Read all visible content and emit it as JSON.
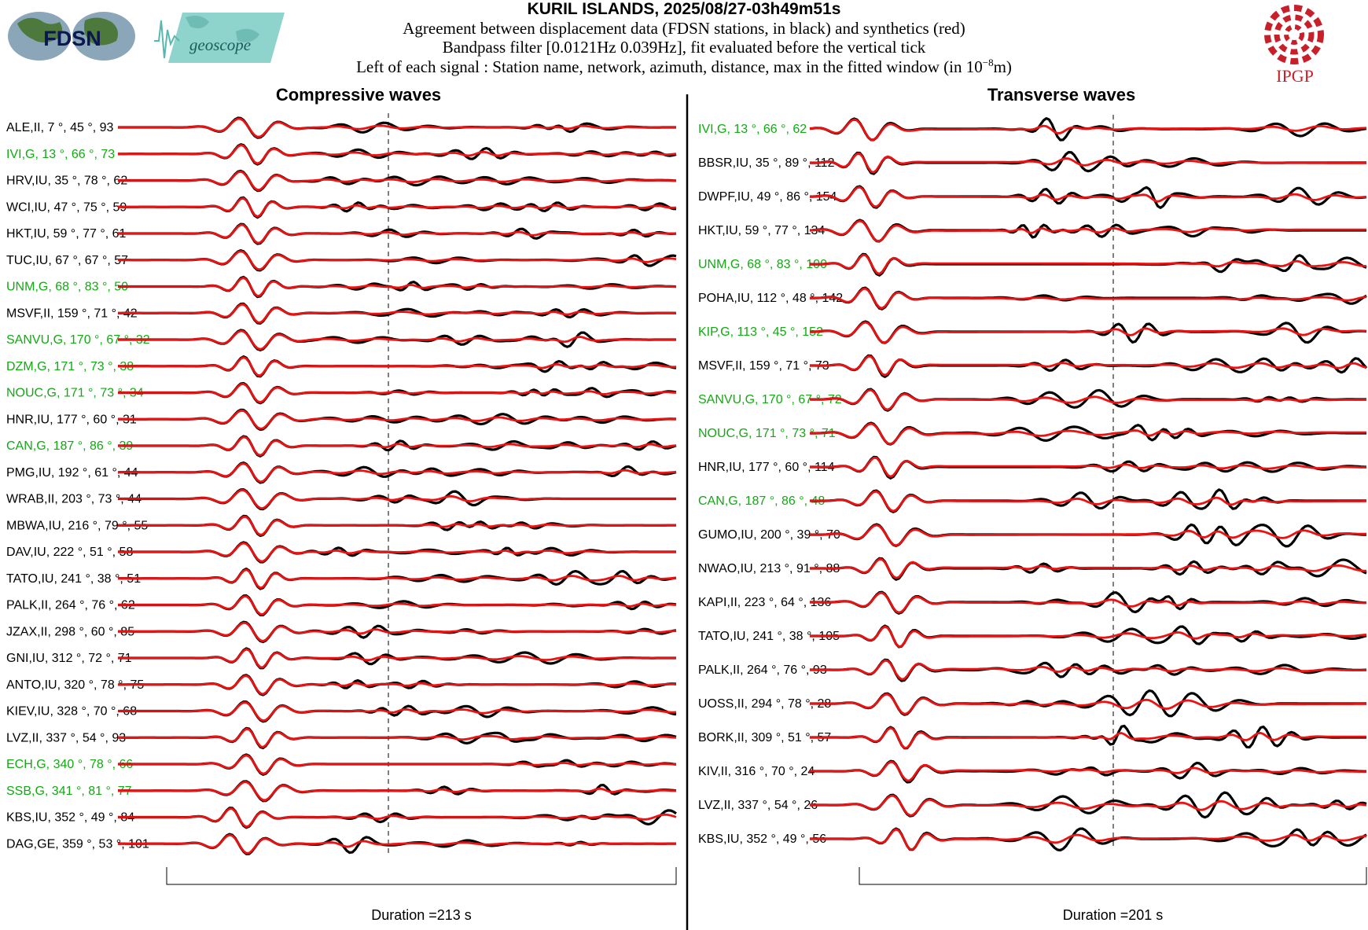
{
  "header": {
    "title": "KURIL ISLANDS, 2025/08/27-03h49m51s",
    "line1": "Agreement between displacement data (FDSN stations, in black) and synthetics (red)",
    "line2": "Bandpass filter [0.0121Hz 0.039Hz], fit evaluated before the vertical tick",
    "line3_prefix": "Left of each signal : Station name, network, azimuth, distance, max in the fitted window (in 10",
    "line3_exp": "−8",
    "line3_suffix": "m)"
  },
  "logos": {
    "fdsn": "FDSN",
    "geoscope": "geoscope",
    "ipgp": "IPGP"
  },
  "colors": {
    "data": "#000000",
    "synthetic": "#ee1111",
    "geoscope_station": "#11aa11",
    "other_station": "#000000"
  },
  "chart_data": [
    {
      "type": "line",
      "title": "Compressive waves",
      "xlabel": "Duration =213 s",
      "duration_s": 213,
      "series": [
        "data",
        "synthetics"
      ],
      "stations": [
        {
          "label": "ALE,II, 7 °, 45 °, 93",
          "geoscope": false
        },
        {
          "label": "IVI,G, 13 °, 66 °, 73",
          "geoscope": true
        },
        {
          "label": "HRV,IU, 35 °, 78 °, 62",
          "geoscope": false
        },
        {
          "label": "WCI,IU, 47 °, 75 °, 59",
          "geoscope": false
        },
        {
          "label": "HKT,IU, 59 °, 77 °, 61",
          "geoscope": false
        },
        {
          "label": "TUC,IU, 67 °, 67 °, 57",
          "geoscope": false
        },
        {
          "label": "UNM,G, 68 °, 83 °, 50",
          "geoscope": true
        },
        {
          "label": "MSVF,II, 159 °, 71 °, 42",
          "geoscope": false
        },
        {
          "label": "SANVU,G, 170 °, 67 °, 32",
          "geoscope": true
        },
        {
          "label": "DZM,G, 171 °, 73 °, 38",
          "geoscope": true
        },
        {
          "label": "NOUC,G, 171 °, 73 °, 34",
          "geoscope": true
        },
        {
          "label": "HNR,IU, 177 °, 60 °, 31",
          "geoscope": false
        },
        {
          "label": "CAN,G, 187 °, 86 °, 39",
          "geoscope": true
        },
        {
          "label": "PMG,IU, 192 °, 61 °, 44",
          "geoscope": false
        },
        {
          "label": "WRAB,II, 203 °, 73 °, 44",
          "geoscope": false
        },
        {
          "label": "MBWA,IU, 216 °, 79 °, 55",
          "geoscope": false
        },
        {
          "label": "DAV,IU, 222 °, 51 °, 58",
          "geoscope": false
        },
        {
          "label": "TATO,IU, 241 °, 38 °, 51",
          "geoscope": false
        },
        {
          "label": "PALK,II, 264 °, 76 °, 62",
          "geoscope": false
        },
        {
          "label": "JZAX,II, 298 °, 60 °, 85",
          "geoscope": false
        },
        {
          "label": "GNI,IU, 312 °, 72 °, 71",
          "geoscope": false
        },
        {
          "label": "ANTO,IU, 320 °, 78 °, 75",
          "geoscope": false
        },
        {
          "label": "KIEV,IU, 328 °, 70 °, 68",
          "geoscope": false
        },
        {
          "label": "LVZ,II, 337 °, 54 °, 93",
          "geoscope": false
        },
        {
          "label": "ECH,G, 340 °, 78 °, 66",
          "geoscope": true
        },
        {
          "label": "SSB,G, 341 °, 81 °, 77",
          "geoscope": true
        },
        {
          "label": "KBS,IU, 352 °, 49 °, 84",
          "geoscope": false
        },
        {
          "label": "DAG,GE, 359 °, 53 °, 101",
          "geoscope": false
        }
      ]
    },
    {
      "type": "line",
      "title": "Transverse waves",
      "xlabel": "Duration =201 s",
      "duration_s": 201,
      "series": [
        "data",
        "synthetics"
      ],
      "stations": [
        {
          "label": "IVI,G, 13 °, 66 °, 62",
          "geoscope": true
        },
        {
          "label": "BBSR,IU, 35 °, 89 °, 112",
          "geoscope": false
        },
        {
          "label": "DWPF,IU, 49 °, 86 °, 154",
          "geoscope": false
        },
        {
          "label": "HKT,IU, 59 °, 77 °, 134",
          "geoscope": false
        },
        {
          "label": "UNM,G, 68 °, 83 °, 100",
          "geoscope": true
        },
        {
          "label": "POHA,IU, 112 °, 48 °, 142",
          "geoscope": false
        },
        {
          "label": "KIP,G, 113 °, 45 °, 152",
          "geoscope": true
        },
        {
          "label": "MSVF,II, 159 °, 71 °, 73",
          "geoscope": false
        },
        {
          "label": "SANVU,G, 170 °, 67 °, 72",
          "geoscope": true
        },
        {
          "label": "NOUC,G, 171 °, 73 °, 71",
          "geoscope": true
        },
        {
          "label": "HNR,IU, 177 °, 60 °, 114",
          "geoscope": false
        },
        {
          "label": "CAN,G, 187 °, 86 °, 48",
          "geoscope": true
        },
        {
          "label": "GUMO,IU, 200 °, 39 °, 70",
          "geoscope": false
        },
        {
          "label": "NWAO,IU, 213 °, 91 °, 88",
          "geoscope": false
        },
        {
          "label": "KAPI,II, 223 °, 64 °, 136",
          "geoscope": false
        },
        {
          "label": "TATO,IU, 241 °, 38 °, 105",
          "geoscope": false
        },
        {
          "label": "PALK,II, 264 °, 76 °, 93",
          "geoscope": false
        },
        {
          "label": "UOSS,II, 294 °, 78 °, 28",
          "geoscope": false
        },
        {
          "label": "BORK,II, 309 °, 51 °, 57",
          "geoscope": false
        },
        {
          "label": "KIV,II, 316 °, 70 °, 24",
          "geoscope": false
        },
        {
          "label": "LVZ,II, 337 °, 54 °, 26",
          "geoscope": false
        },
        {
          "label": "KBS,IU, 352 °, 49 °, 56",
          "geoscope": false
        }
      ]
    }
  ]
}
